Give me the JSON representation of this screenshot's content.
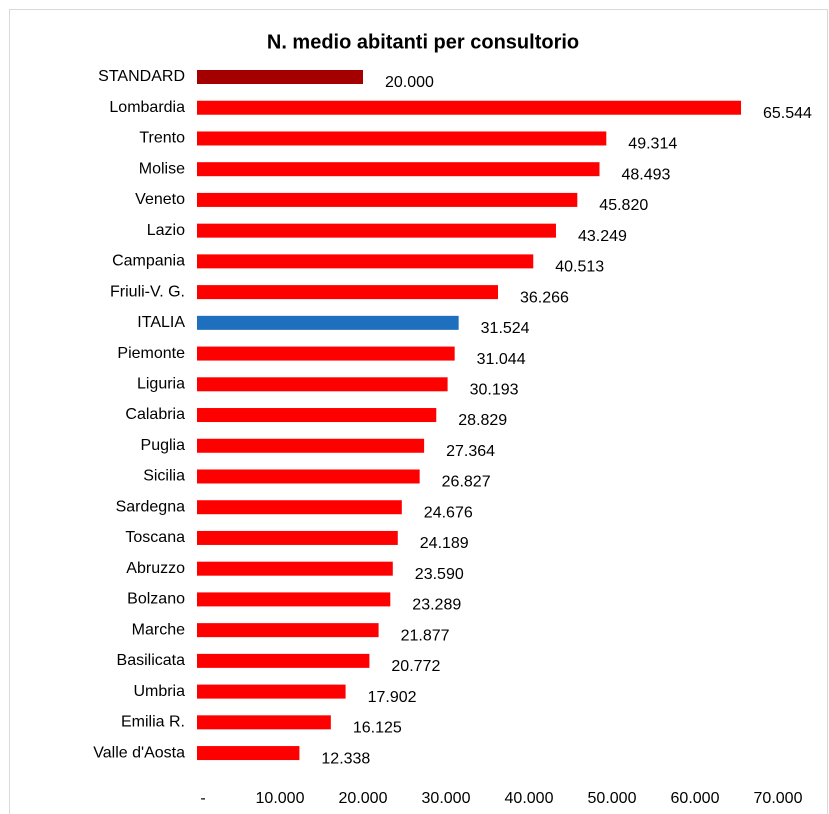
{
  "chart_data": {
    "type": "bar",
    "orientation": "horizontal",
    "title": "N. medio abitanti per consultorio",
    "categories": [
      "STANDARD",
      "Lombardia",
      "Trento",
      "Molise",
      "Veneto",
      "Lazio",
      "Campania",
      "Friuli-V. G.",
      "ITALIA",
      "Piemonte",
      "Liguria",
      "Calabria",
      "Puglia",
      "Sicilia",
      "Sardegna",
      "Toscana",
      "Abruzzo",
      "Bolzano",
      "Marche",
      "Basilicata",
      "Umbria",
      "Emilia R.",
      "Valle d'Aosta"
    ],
    "values": [
      20000,
      65544,
      49314,
      48493,
      45820,
      43249,
      40513,
      36266,
      31524,
      31044,
      30193,
      28829,
      27364,
      26827,
      24676,
      24189,
      23590,
      23289,
      21877,
      20772,
      17902,
      16125,
      12338
    ],
    "value_labels": [
      "20.000",
      "65.544",
      "49.314",
      "48.493",
      "45.820",
      "43.249",
      "40.513",
      "36.266",
      "31.524",
      "31.044",
      "30.193",
      "28.829",
      "27.364",
      "26.827",
      "24.676",
      "24.189",
      "23.590",
      "23.289",
      "21.877",
      "20.772",
      "17.902",
      "16.125",
      "12.338"
    ],
    "colors": [
      "#a50000",
      "#ff0000",
      "#ff0000",
      "#ff0000",
      "#ff0000",
      "#ff0000",
      "#ff0000",
      "#ff0000",
      "#1f6fbf",
      "#ff0000",
      "#ff0000",
      "#ff0000",
      "#ff0000",
      "#ff0000",
      "#ff0000",
      "#ff0000",
      "#ff0000",
      "#ff0000",
      "#ff0000",
      "#ff0000",
      "#ff0000",
      "#ff0000",
      "#ff0000"
    ],
    "xlim": [
      0,
      70000
    ],
    "xticks": [
      {
        "value": 0,
        "label": "-"
      },
      {
        "value": 10000,
        "label": "10.000"
      },
      {
        "value": 20000,
        "label": "20.000"
      },
      {
        "value": 30000,
        "label": "30.000"
      },
      {
        "value": 40000,
        "label": "40.000"
      },
      {
        "value": 50000,
        "label": "50.000"
      },
      {
        "value": 60000,
        "label": "60.000"
      },
      {
        "value": 70000,
        "label": "70.000"
      }
    ],
    "grid": false
  }
}
